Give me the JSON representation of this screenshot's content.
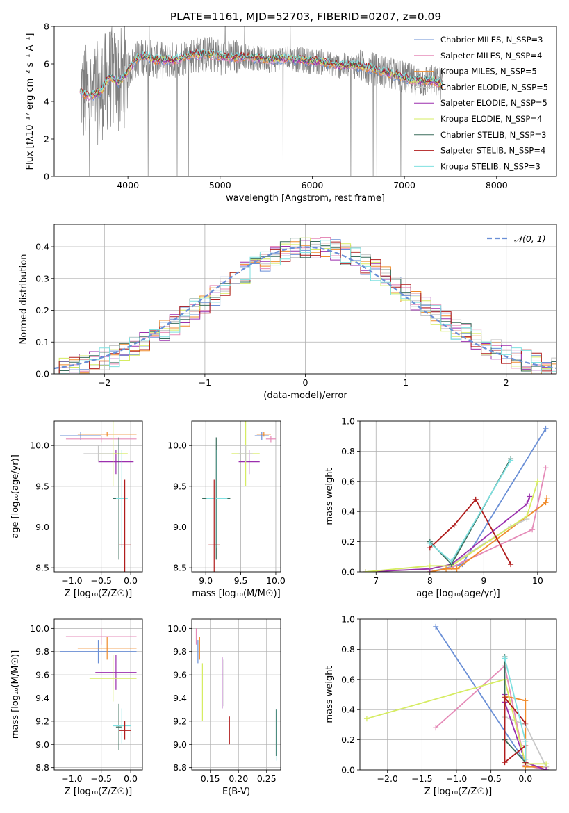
{
  "figure": {
    "title": "PLATE=1161, MJD=52703, FIBERID=0207, z=0.09"
  },
  "chart_data": [
    {
      "id": "spectrum",
      "type": "line",
      "xlabel": "wavelength [Angstrom, rest frame]",
      "ylabel": "Flux [fλ10⁻¹⁷ erg cm⁻² s⁻¹ A⁻¹]",
      "xlim": [
        3200,
        8650
      ],
      "ylim": [
        0,
        8
      ],
      "xticks": [
        4000,
        5000,
        6000,
        7000,
        8000
      ],
      "yticks": [
        0,
        2,
        4,
        6,
        8
      ],
      "legend_position": "upper-right",
      "data_color": "#808080",
      "series": [
        {
          "name": "Chabrier MILES, N_SSP=3",
          "color": "#6a8fd6"
        },
        {
          "name": "Salpeter MILES, N_SSP=4",
          "color": "#e58bb8"
        },
        {
          "name": "Kroupa MILES, N_SSP=5",
          "color": "#ef8a2a"
        },
        {
          "name": "Chabrier ELODIE, N_SSP=5",
          "color": "#c8c8c8"
        },
        {
          "name": "Salpeter ELODIE, N_SSP=5",
          "color": "#9b2fae"
        },
        {
          "name": "Kroupa ELODIE, N_SSP=4",
          "color": "#d6ec62"
        },
        {
          "name": "Chabrier STELIB, N_SSP=3",
          "color": "#3a6d5c"
        },
        {
          "name": "Salpeter STELIB, N_SSP=4",
          "color": "#b01c1c"
        },
        {
          "name": "Kroupa STELIB, N_SSP=3",
          "color": "#7fe0e0"
        }
      ],
      "model_continuum": {
        "x": [
          3500,
          3600,
          3700,
          3800,
          3900,
          4000,
          4100,
          4200,
          4300,
          4500,
          4700,
          4900,
          5100,
          5300,
          5500,
          5700,
          5900,
          6100,
          6300,
          6500,
          6700,
          6900,
          7100,
          7300,
          7500,
          7700,
          7900,
          8100,
          8300
        ],
        "y": [
          4.4,
          4.3,
          4.5,
          5.3,
          5.0,
          5.6,
          6.3,
          6.4,
          6.2,
          6.2,
          6.5,
          6.5,
          6.3,
          6.4,
          6.2,
          6.3,
          6.2,
          6.1,
          5.9,
          5.9,
          5.7,
          5.4,
          5.1,
          5.1,
          4.8,
          4.7,
          4.6,
          4.6,
          4.7
        ]
      }
    },
    {
      "id": "residuals",
      "type": "step-histogram",
      "xlabel": "(data-model)/error",
      "ylabel": "Normed distribution",
      "xlim": [
        -2.5,
        2.5
      ],
      "ylim": [
        0,
        0.47
      ],
      "xticks": [
        -2,
        -1,
        0,
        1,
        2
      ],
      "yticks": [
        0.0,
        0.1,
        0.2,
        0.3,
        0.4
      ],
      "grid": true,
      "legend_position": "upper-right",
      "reference_curve": {
        "name": "𝒩(0, 1)",
        "mean": 0,
        "sigma": 1,
        "color": "#6a8fd6",
        "style": "dashed"
      }
    },
    {
      "id": "age-vs-Z",
      "type": "errorbar",
      "xlabel": "Z [log₁₀(Z/Z☉)]",
      "ylabel": "age  [log₁₀(age/yr)]",
      "xlim": [
        -1.3,
        0.2
      ],
      "ylim": [
        8.45,
        10.3
      ],
      "xticks": [
        -1.0,
        -0.5,
        0.0
      ],
      "yticks": [
        8.5,
        9.0,
        9.5,
        10.0
      ],
      "grid": true,
      "points": [
        {
          "model": "Chabrier MILES",
          "x": -0.85,
          "xerr": 0.35,
          "y": 10.12,
          "yerr": 0.05
        },
        {
          "model": "Salpeter MILES",
          "x": -0.5,
          "xerr": 0.6,
          "y": 10.08,
          "yerr": 0.04
        },
        {
          "model": "Kroupa MILES",
          "x": -0.4,
          "xerr": 0.5,
          "y": 10.14,
          "yerr": 0.03
        },
        {
          "model": "Salpeter ELODIE",
          "x": -0.25,
          "xerr": 0.3,
          "y": 9.8,
          "yerr": 0.15
        },
        {
          "model": "Kroupa ELODIE",
          "x": -0.3,
          "xerr": 0.25,
          "y": 9.9,
          "yerr": 0.4
        },
        {
          "model": "Chabrier ELODIE",
          "x": -0.55,
          "xerr": 0.25,
          "y": 9.9,
          "yerr": 0.1
        },
        {
          "model": "Chabrier STELIB",
          "x": -0.2,
          "xerr": 0.1,
          "y": 9.35,
          "yerr": 0.75
        },
        {
          "model": "Kroupa STELIB",
          "x": -0.15,
          "xerr": 0.1,
          "y": 9.35,
          "yerr": 0.6
        },
        {
          "model": "Salpeter STELIB",
          "x": -0.1,
          "xerr": 0.1,
          "y": 8.78,
          "yerr": 0.8
        }
      ]
    },
    {
      "id": "age-vs-mass",
      "type": "errorbar",
      "xlabel": "mass [log₁₀(M/M☉)]",
      "xlim": [
        8.8,
        10.07
      ],
      "ylim": [
        8.45,
        10.3
      ],
      "xticks": [
        9.0,
        9.5,
        10.0
      ],
      "yticks": [
        8.5,
        9.0,
        9.5,
        10.0
      ],
      "grid": true,
      "points": [
        {
          "model": "Chabrier MILES",
          "x": 9.8,
          "xerr": 0.1,
          "y": 10.12,
          "yerr": 0.05
        },
        {
          "model": "Salpeter MILES",
          "x": 9.93,
          "xerr": 0.07,
          "y": 10.08,
          "yerr": 0.04
        },
        {
          "model": "Kroupa MILES",
          "x": 9.83,
          "xerr": 0.1,
          "y": 10.14,
          "yerr": 0.03
        },
        {
          "model": "Salpeter ELODIE",
          "x": 9.62,
          "xerr": 0.15,
          "y": 9.8,
          "yerr": 0.15
        },
        {
          "model": "Kroupa ELODIE",
          "x": 9.57,
          "xerr": 0.2,
          "y": 9.9,
          "yerr": 0.4
        },
        {
          "model": "Chabrier ELODIE",
          "x": 9.57,
          "xerr": 0.1,
          "y": 9.9,
          "yerr": 0.1
        },
        {
          "model": "Chabrier STELIB",
          "x": 9.15,
          "xerr": 0.2,
          "y": 9.35,
          "yerr": 0.75
        },
        {
          "model": "Kroupa STELIB",
          "x": 9.16,
          "xerr": 0.15,
          "y": 9.35,
          "yerr": 0.6
        },
        {
          "model": "Salpeter STELIB",
          "x": 9.12,
          "xerr": 0.08,
          "y": 8.78,
          "yerr": 0.8
        }
      ]
    },
    {
      "id": "weight-vs-age",
      "type": "line",
      "xlabel": "age  [log₁₀(age/yr)]",
      "ylabel": "mass weight",
      "xlim": [
        6.7,
        10.35
      ],
      "ylim": [
        0,
        1.0
      ],
      "xticks": [
        7,
        8,
        9,
        10
      ],
      "yticks": [
        0.0,
        0.2,
        0.4,
        0.6,
        0.8,
        1.0
      ],
      "grid": true,
      "series": [
        {
          "name": "Chabrier MILES",
          "x": [
            8.0,
            8.6,
            10.15
          ],
          "y": [
            0.0,
            0.05,
            0.95
          ]
        },
        {
          "name": "Salpeter MILES",
          "x": [
            8.0,
            8.4,
            9.9,
            10.15
          ],
          "y": [
            0.0,
            0.03,
            0.28,
            0.69
          ]
        },
        {
          "name": "Kroupa MILES",
          "x": [
            8.0,
            8.3,
            8.5,
            10.15,
            10.17
          ],
          "y": [
            0.0,
            0.02,
            0.02,
            0.46,
            0.49
          ]
        },
        {
          "name": "Chabrier ELODIE",
          "x": [
            6.8,
            8.0,
            8.4,
            9.5,
            9.8
          ],
          "y": [
            0.0,
            0.02,
            0.05,
            0.3,
            0.35
          ]
        },
        {
          "name": "Salpeter ELODIE",
          "x": [
            6.8,
            8.0,
            8.4,
            9.8,
            9.85
          ],
          "y": [
            0.0,
            0.02,
            0.05,
            0.45,
            0.5
          ]
        },
        {
          "name": "Kroupa ELODIE",
          "x": [
            6.8,
            8.0,
            8.4,
            9.8,
            10.0
          ],
          "y": [
            0.0,
            0.04,
            0.04,
            0.37,
            0.6
          ]
        },
        {
          "name": "Chabrier STELIB",
          "x": [
            8.0,
            8.4,
            9.5
          ],
          "y": [
            0.2,
            0.05,
            0.75
          ]
        },
        {
          "name": "Salpeter STELIB",
          "x": [
            8.0,
            8.45,
            8.85,
            9.5
          ],
          "y": [
            0.16,
            0.31,
            0.48,
            0.05
          ]
        },
        {
          "name": "Kroupa STELIB",
          "x": [
            8.0,
            8.4,
            9.5
          ],
          "y": [
            0.19,
            0.07,
            0.74
          ]
        }
      ]
    },
    {
      "id": "mass-vs-Z",
      "type": "errorbar",
      "xlabel": "Z [log₁₀(Z/Z☉)]",
      "ylabel": "mass [log₁₀(M/M☉)]",
      "xlim": [
        -1.3,
        0.2
      ],
      "ylim": [
        8.78,
        10.08
      ],
      "xticks": [
        -1.0,
        -0.5,
        0.0
      ],
      "yticks": [
        8.8,
        9.0,
        9.2,
        9.4,
        9.6,
        9.8,
        10.0
      ],
      "grid": true,
      "points": [
        {
          "model": "Chabrier MILES",
          "x": -0.55,
          "xerr": 0.65,
          "y": 9.8,
          "yerr": 0.1
        },
        {
          "model": "Salpeter MILES",
          "x": -0.5,
          "xerr": 0.6,
          "y": 9.93,
          "yerr": 0.07
        },
        {
          "model": "Kroupa MILES",
          "x": -0.4,
          "xerr": 0.5,
          "y": 9.83,
          "yerr": 0.1
        },
        {
          "model": "Salpeter ELODIE",
          "x": -0.25,
          "xerr": 0.35,
          "y": 9.62,
          "yerr": 0.15
        },
        {
          "model": "Kroupa ELODIE",
          "x": -0.3,
          "xerr": 0.4,
          "y": 9.57,
          "yerr": 0.2
        },
        {
          "model": "Chabrier STELIB",
          "x": -0.2,
          "xerr": 0.05,
          "y": 9.15,
          "yerr": 0.2
        },
        {
          "model": "Kroupa STELIB",
          "x": -0.15,
          "xerr": 0.15,
          "y": 9.16,
          "yerr": 0.15
        },
        {
          "model": "Salpeter STELIB",
          "x": -0.1,
          "xerr": 0.1,
          "y": 9.12,
          "yerr": 0.08
        }
      ]
    },
    {
      "id": "mass-vs-ebv",
      "type": "errorbar",
      "xlabel": "E(B-V)",
      "xlim": [
        0.117,
        0.275
      ],
      "ylim": [
        8.78,
        10.08
      ],
      "xticks": [
        0.15,
        0.2,
        0.25
      ],
      "yticks": [
        8.8,
        9.0,
        9.2,
        9.4,
        9.6,
        9.8,
        10.0
      ],
      "grid": true,
      "points": [
        {
          "model": "Chabrier MILES",
          "x": 0.128,
          "y": 9.8,
          "yerr": 0.1
        },
        {
          "model": "Salpeter MILES",
          "x": 0.125,
          "y": 9.93,
          "yerr": 0.07
        },
        {
          "model": "Kroupa MILES",
          "x": 0.131,
          "y": 9.83,
          "yerr": 0.1
        },
        {
          "model": "Kroupa ELODIE",
          "x": 0.136,
          "y": 9.45,
          "yerr": 0.25
        },
        {
          "model": "Salpeter ELODIE",
          "x": 0.171,
          "y": 9.53,
          "yerr": 0.22
        },
        {
          "model": "Chabrier ELODIE",
          "x": 0.174,
          "y": 9.53,
          "yerr": 0.2
        },
        {
          "model": "Salpeter STELIB",
          "x": 0.184,
          "y": 9.12,
          "yerr": 0.12
        },
        {
          "model": "Chabrier STELIB",
          "x": 0.267,
          "y": 9.1,
          "yerr": 0.2
        },
        {
          "model": "Kroupa STELIB",
          "x": 0.268,
          "y": 9.08,
          "yerr": 0.22
        }
      ]
    },
    {
      "id": "weight-vs-Z",
      "type": "line",
      "xlabel": "Z [log₁₀(Z/Z☉)]",
      "ylabel": "mass weight",
      "xlim": [
        -2.4,
        0.45
      ],
      "ylim": [
        0,
        1.0
      ],
      "xticks": [
        -2.0,
        -1.5,
        -1.0,
        -0.5,
        0.0
      ],
      "yticks": [
        0.0,
        0.2,
        0.4,
        0.6,
        0.8,
        1.0
      ],
      "grid": true,
      "series": [
        {
          "name": "Chabrier MILES",
          "x": [
            -1.3,
            0.0,
            0.3
          ],
          "y": [
            0.95,
            0.05,
            0.0
          ]
        },
        {
          "name": "Salpeter MILES",
          "x": [
            -1.3,
            -0.3,
            0.0,
            0.3
          ],
          "y": [
            0.28,
            0.69,
            0.03,
            0.0
          ]
        },
        {
          "name": "Kroupa MILES",
          "x": [
            -0.3,
            0.0,
            0.0,
            0.3
          ],
          "y": [
            0.49,
            0.46,
            0.02,
            0.02
          ]
        },
        {
          "name": "Chabrier ELODIE",
          "x": [
            -0.3,
            0.0,
            0.3
          ],
          "y": [
            0.35,
            0.3,
            0.02
          ]
        },
        {
          "name": "Salpeter ELODIE",
          "x": [
            -0.3,
            -0.3,
            0.0,
            0.3
          ],
          "y": [
            0.5,
            0.45,
            0.05,
            0.0
          ]
        },
        {
          "name": "Kroupa ELODIE",
          "x": [
            -2.3,
            -0.3,
            0.0,
            0.3
          ],
          "y": [
            0.34,
            0.6,
            0.04,
            0.04
          ]
        },
        {
          "name": "Chabrier STELIB",
          "x": [
            -0.3,
            -0.3,
            0.0
          ],
          "y": [
            0.75,
            0.2,
            0.05
          ]
        },
        {
          "name": "Salpeter STELIB",
          "x": [
            0.0,
            -0.3,
            -0.3,
            0.0,
            0.0
          ],
          "y": [
            0.31,
            0.48,
            0.05,
            0.16,
            0.05
          ]
        },
        {
          "name": "Kroupa STELIB",
          "x": [
            -0.3,
            0.0,
            0.0
          ],
          "y": [
            0.74,
            0.19,
            0.07
          ]
        }
      ]
    }
  ]
}
